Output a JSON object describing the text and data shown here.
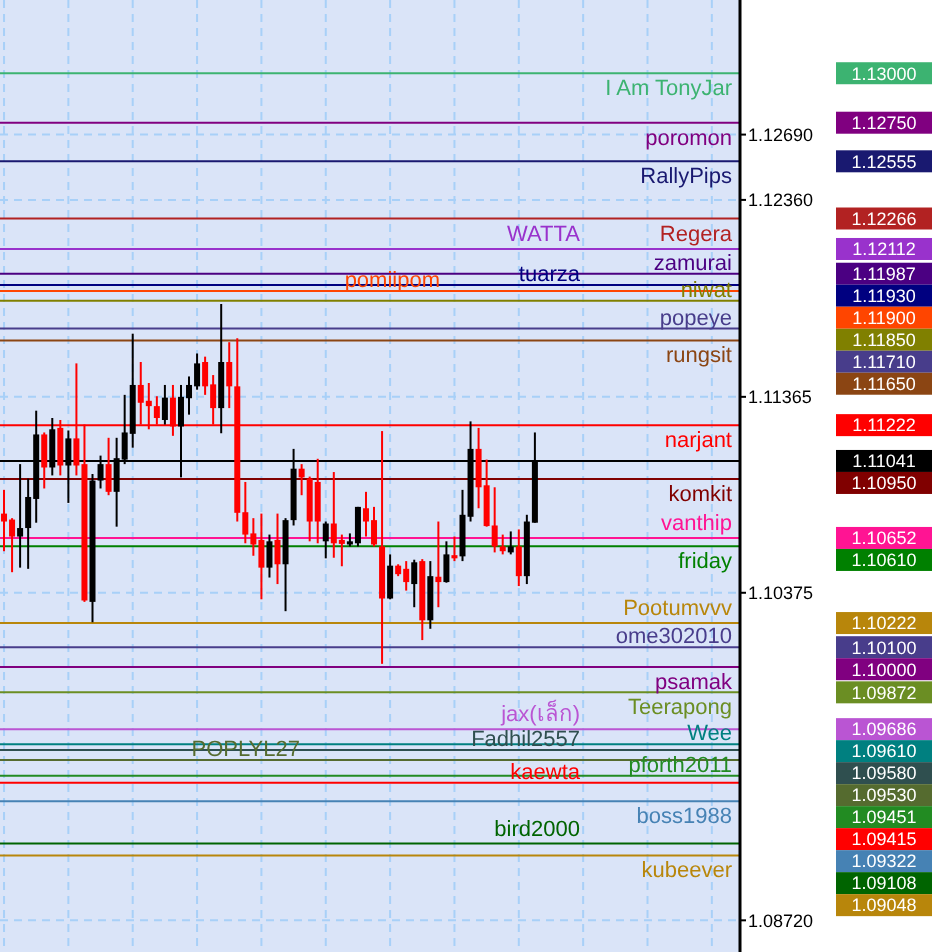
{
  "chart_data": {
    "type": "candlestick",
    "categories": [
      null,
      null,
      null,
      null,
      null,
      null,
      null,
      null,
      null,
      null,
      null,
      null,
      null,
      null,
      null,
      null,
      null,
      null,
      null,
      null,
      null,
      null,
      null,
      null,
      null,
      null,
      null,
      null,
      null,
      null,
      null,
      null,
      null,
      null,
      null,
      null,
      null,
      null,
      null,
      null,
      null,
      null,
      null,
      null,
      null,
      null,
      null,
      null,
      null,
      null,
      null,
      null,
      null,
      null,
      null,
      null,
      null,
      null,
      null,
      null,
      null,
      null,
      null,
      null,
      null,
      null,
      null,
      null,
      null,
      null,
      null,
      null,
      null,
      null,
      null,
      null,
      null,
      null,
      null,
      null,
      null,
      null,
      null,
      null,
      null,
      null,
      null,
      null,
      null,
      null,
      null,
      null
    ],
    "ohlc": [
      [
        1.10775,
        1.10895,
        1.10585,
        1.10735
      ],
      [
        1.10745,
        1.10752,
        1.10479,
        1.10659
      ],
      [
        1.10659,
        1.11025,
        1.10502,
        1.10702
      ],
      [
        1.10702,
        1.10952,
        1.10496,
        1.10859
      ],
      [
        1.10849,
        1.11295,
        1.10729,
        1.11175
      ],
      [
        1.11175,
        1.11185,
        1.10902,
        1.11008
      ],
      [
        1.11008,
        1.11258,
        1.10968,
        1.11201
      ],
      [
        1.11208,
        1.11248,
        1.10968,
        1.11018
      ],
      [
        1.11018,
        1.11195,
        1.10829,
        1.11155
      ],
      [
        1.11155,
        1.11534,
        1.10968,
        1.11018
      ],
      [
        1.11025,
        1.11225,
        1.10329,
        1.10336
      ],
      [
        1.10329,
        1.10975,
        1.10226,
        1.10942
      ],
      [
        1.10942,
        1.11068,
        1.10902,
        1.11025
      ],
      [
        1.11025,
        1.11158,
        1.10868,
        1.10885
      ],
      [
        1.10885,
        1.11158,
        1.10709,
        1.11055
      ],
      [
        1.11048,
        1.11375,
        1.11025,
        1.11185
      ],
      [
        1.11178,
        1.11684,
        1.11108,
        1.11425
      ],
      [
        1.11425,
        1.11541,
        1.11225,
        1.11335
      ],
      [
        1.11345,
        1.11435,
        1.11201,
        1.11318
      ],
      [
        1.11318,
        1.11368,
        1.11225,
        1.11258
      ],
      [
        1.11248,
        1.11425,
        1.11225,
        1.11361
      ],
      [
        1.11361,
        1.11425,
        1.11168,
        1.11215
      ],
      [
        1.11215,
        1.11425,
        1.10958,
        1.11365
      ],
      [
        1.11358,
        1.11468,
        1.11275,
        1.11425
      ],
      [
        1.11418,
        1.11584,
        1.11401,
        1.11534
      ],
      [
        1.11541,
        1.11568,
        1.11375,
        1.11418
      ],
      [
        1.11428,
        1.11475,
        1.11225,
        1.11308
      ],
      [
        1.11308,
        1.11834,
        1.11181,
        1.11541
      ],
      [
        1.11541,
        1.11641,
        1.11308,
        1.11418
      ],
      [
        1.11418,
        1.11661,
        1.10735,
        1.10779
      ],
      [
        1.10782,
        1.10935,
        1.10625,
        1.10669
      ],
      [
        1.10675,
        1.10752,
        1.10562,
        1.10619
      ],
      [
        1.10642,
        1.10775,
        1.10342,
        1.10502
      ],
      [
        1.10502,
        1.10669,
        1.10452,
        1.10635
      ],
      [
        1.10642,
        1.10775,
        1.10419,
        1.10519
      ],
      [
        1.10519,
        1.10752,
        1.10282,
        1.10742
      ],
      [
        1.10742,
        1.11102,
        1.10715,
        1.11002
      ],
      [
        1.11002,
        1.11025,
        1.10868,
        1.10958
      ],
      [
        1.10952,
        1.10962,
        1.10635,
        1.10735
      ],
      [
        1.10935,
        1.11052,
        1.10625,
        1.10735
      ],
      [
        1.10635,
        1.10735,
        1.10549,
        1.10725
      ],
      [
        1.10725,
        1.10985,
        1.10552,
        1.10625
      ],
      [
        1.10642,
        1.10669,
        1.10509,
        1.10622
      ],
      [
        1.10619,
        1.10675,
        1.10609,
        1.10635
      ],
      [
        1.10625,
        1.10809,
        1.10609,
        1.10809
      ],
      [
        1.10802,
        1.10885,
        1.10659,
        1.10735
      ],
      [
        1.10742,
        1.10809,
        1.10609,
        1.10619
      ],
      [
        1.10609,
        1.11192,
        1.10016,
        1.10346
      ],
      [
        1.10346,
        1.10569,
        1.10342,
        1.10512
      ],
      [
        1.10512,
        1.10519,
        1.10459,
        1.10469
      ],
      [
        1.10496,
        1.10535,
        1.10386,
        1.10429
      ],
      [
        1.10419,
        1.10542,
        1.10302,
        1.10529
      ],
      [
        1.10535,
        1.10545,
        1.10136,
        1.10236
      ],
      [
        1.10236,
        1.10535,
        1.10193,
        1.10459
      ],
      [
        1.10456,
        1.10735,
        1.10302,
        1.10429
      ],
      [
        1.10429,
        1.10635,
        1.10426,
        1.10569
      ],
      [
        1.10565,
        1.10659,
        1.10535,
        1.10549
      ],
      [
        1.10559,
        1.10895,
        1.10535,
        1.10769
      ],
      [
        1.10759,
        1.11241,
        1.10735,
        1.11102
      ],
      [
        1.11102,
        1.11208,
        1.10802,
        1.10908
      ],
      [
        1.10918,
        1.11048,
        1.10709,
        1.10712
      ],
      [
        1.10715,
        1.10908,
        1.10579,
        1.10609
      ],
      [
        1.10609,
        1.10669,
        1.10569,
        1.10585
      ],
      [
        1.10579,
        1.10685,
        1.10569,
        1.10609
      ],
      [
        1.10609,
        1.10695,
        1.10409,
        1.10459
      ],
      [
        1.10459,
        1.10769,
        1.10419,
        1.10735
      ],
      [
        1.10729,
        1.11185,
        1.10729,
        1.11041
      ],
      null,
      null,
      null,
      null,
      null,
      null,
      null,
      null,
      null,
      null,
      null,
      null,
      null,
      null,
      null,
      null,
      null,
      null,
      null,
      null,
      null,
      null,
      null,
      null,
      null
    ],
    "ylim": [
      1.0856,
      1.1337
    ],
    "yticks": [
      {
        "value": 1.1269,
        "label": "1.12690"
      },
      {
        "value": 1.1236,
        "label": "1.12360"
      },
      {
        "value": 1.11365,
        "label": "1.11365"
      },
      {
        "value": 1.10375,
        "label": "1.10375"
      },
      {
        "value": 1.0872,
        "label": "1.08720"
      }
    ],
    "grid": true,
    "ref_lines": [
      {
        "axis": "y",
        "value": 1.13,
        "label": "I Am TonyJar",
        "color": "#3cb371"
      },
      {
        "axis": "y",
        "value": 1.1275,
        "label": "poromon",
        "color": "#800080"
      },
      {
        "axis": "y",
        "value": 1.12555,
        "label": "RallyPips",
        "color": "#191970"
      },
      {
        "axis": "y",
        "value": 1.12266,
        "label": "Regera",
        "color": "#b22222"
      },
      {
        "axis": "y",
        "value": 1.12112,
        "label": "WATTA",
        "color": "#9932cc"
      },
      {
        "axis": "y",
        "value": 1.11987,
        "label": "zamurai",
        "color": "#4b0082"
      },
      {
        "axis": "y",
        "value": 1.1193,
        "label": "tuarza",
        "color": "#000080"
      },
      {
        "axis": "y",
        "value": 1.119,
        "label": "pomiipom",
        "color": "#ff4500"
      },
      {
        "axis": "y",
        "value": 1.1185,
        "label": "niwat",
        "color": "#808000"
      },
      {
        "axis": "y",
        "value": 1.1171,
        "label": "popeye",
        "color": "#483d8b"
      },
      {
        "axis": "y",
        "value": 1.1165,
        "label": "rungsit",
        "color": "#8b4513"
      },
      {
        "axis": "y",
        "value": 1.11222,
        "label": "narjant",
        "color": "#ff0000"
      },
      {
        "axis": "y",
        "value": 1.11041,
        "label": null,
        "color": "#000000"
      },
      {
        "axis": "y",
        "value": 1.1095,
        "label": "komkit",
        "color": "#800000"
      },
      {
        "axis": "y",
        "value": 1.10652,
        "label": "vanthip",
        "color": "#ff1493"
      },
      {
        "axis": "y",
        "value": 1.1061,
        "label": "friday",
        "color": "#008000"
      },
      {
        "axis": "y",
        "value": 1.10222,
        "label": "Pootumvvv",
        "color": "#b8860b"
      },
      {
        "axis": "y",
        "value": 1.101,
        "label": "ome302010",
        "color": "#483d8b"
      },
      {
        "axis": "y",
        "value": 1.1,
        "label": "psamak",
        "color": "#800080"
      },
      {
        "axis": "y",
        "value": 1.09872,
        "label": "Teerapong",
        "color": "#6b8e23"
      },
      {
        "axis": "y",
        "value": 1.09686,
        "label": "jax(เล็ก)",
        "color": "#ba55d3"
      },
      {
        "axis": "y",
        "value": 1.0961,
        "label": "Wee",
        "color": "#008080"
      },
      {
        "axis": "y",
        "value": 1.0958,
        "label": "Fadhil2557",
        "color": "#2f4f4f"
      },
      {
        "axis": "y",
        "value": 1.0953,
        "label": "POPLYL27",
        "color": "#556b2f"
      },
      {
        "axis": "y",
        "value": 1.09451,
        "label": "pforth2011",
        "color": "#228b22"
      },
      {
        "axis": "y",
        "value": 1.09415,
        "label": "kaewta",
        "color": "#ff0000"
      },
      {
        "axis": "y",
        "value": 1.09322,
        "label": "boss1988",
        "color": "#4682b4"
      },
      {
        "axis": "y",
        "value": 1.09108,
        "label": "bird2000",
        "color": "#006400"
      },
      {
        "axis": "y",
        "value": 1.09048,
        "label": "kubeever",
        "color": "#b8860b"
      }
    ],
    "annotations": [
      "1.13000",
      "1.12750",
      "1.12555",
      "1.12266",
      "1.12112",
      "1.11987",
      "1.11930",
      "1.11900",
      "1.11850",
      "1.11710",
      "1.11650",
      "1.11222",
      "1.11041",
      "1.10950",
      "1.10652",
      "1.10610",
      "1.10222",
      "1.10100",
      "1.10000",
      "1.09872",
      "1.09686",
      "1.09610",
      "1.09580",
      "1.09530",
      "1.09451",
      "1.09415",
      "1.09322",
      "1.09108",
      "1.09048"
    ]
  }
}
